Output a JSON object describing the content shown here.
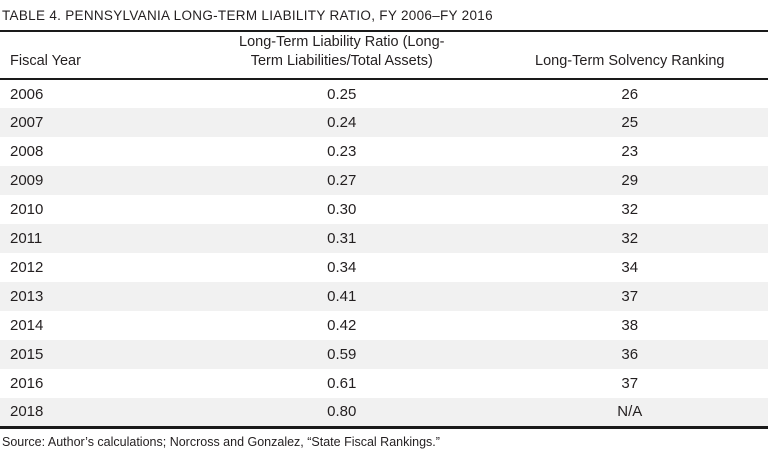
{
  "colors": {
    "text": "#231f20",
    "rule": "#1a1a1a",
    "row_stripe": "#f1f1f1",
    "background": "#ffffff"
  },
  "table": {
    "title": "TABLE 4. PENNSYLVANIA LONG-TERM LIABILITY RATIO, FY 2006–FY 2016",
    "columns": {
      "fiscal_year": "Fiscal Year",
      "ratio_line1": "Long-Term Liability Ratio (Long-",
      "ratio_line2": "Term Liabilities/Total Assets)",
      "ranking": "Long-Term Solvency Ranking"
    },
    "rows": [
      {
        "year": "2006",
        "ratio": "0.25",
        "ranking": "26"
      },
      {
        "year": "2007",
        "ratio": "0.24",
        "ranking": "25"
      },
      {
        "year": "2008",
        "ratio": "0.23",
        "ranking": "23"
      },
      {
        "year": "2009",
        "ratio": "0.27",
        "ranking": "29"
      },
      {
        "year": "2010",
        "ratio": "0.30",
        "ranking": "32"
      },
      {
        "year": "2011",
        "ratio": "0.31",
        "ranking": "32"
      },
      {
        "year": "2012",
        "ratio": "0.34",
        "ranking": "34"
      },
      {
        "year": "2013",
        "ratio": "0.41",
        "ranking": "37"
      },
      {
        "year": "2014",
        "ratio": "0.42",
        "ranking": "38"
      },
      {
        "year": "2015",
        "ratio": "0.59",
        "ranking": "36"
      },
      {
        "year": "2016",
        "ratio": "0.61",
        "ranking": "37"
      },
      {
        "year": "2018",
        "ratio": "0.80",
        "ranking": "N/A"
      }
    ],
    "source": "Source: Author’s calculations; Norcross and Gonzalez, “State Fiscal Rankings.”"
  },
  "chart_data": {
    "type": "table",
    "title": "TABLE 4. PENNSYLVANIA LONG-TERM LIABILITY RATIO, FY 2006–FY 2016",
    "columns": [
      "Fiscal Year",
      "Long-Term Liability Ratio (Long-Term Liabilities/Total Assets)",
      "Long-Term Solvency Ranking"
    ],
    "fiscal_years": [
      2006,
      2007,
      2008,
      2009,
      2010,
      2011,
      2012,
      2013,
      2014,
      2015,
      2016,
      2018
    ],
    "liability_ratio": [
      0.25,
      0.24,
      0.23,
      0.27,
      0.3,
      0.31,
      0.34,
      0.41,
      0.42,
      0.59,
      0.61,
      0.8
    ],
    "solvency_ranking": [
      26,
      25,
      23,
      29,
      32,
      32,
      34,
      37,
      38,
      36,
      37,
      null
    ],
    "solvency_ranking_labels": [
      "26",
      "25",
      "23",
      "29",
      "32",
      "32",
      "34",
      "37",
      "38",
      "36",
      "37",
      "N/A"
    ]
  }
}
